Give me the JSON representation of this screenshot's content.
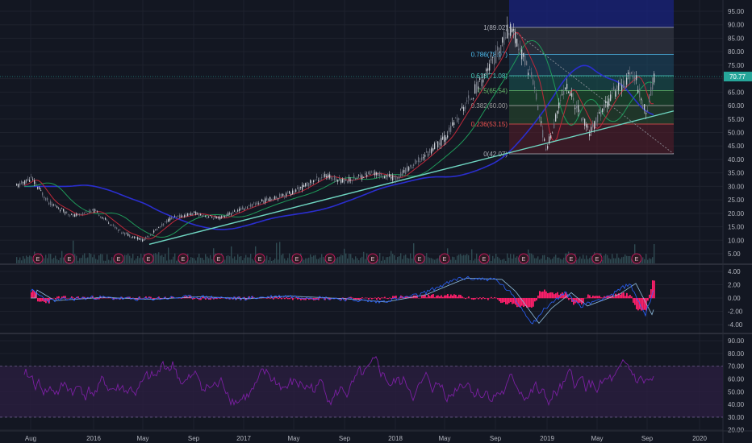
{
  "theme": {
    "background": "#131722",
    "grid": "#1e222d",
    "axis_text": "#b2b5be",
    "candle_up": "#c8ccd4",
    "candle_down": "#6e7380",
    "volume": "#2f4a52",
    "ma_green": "#1f9a5a",
    "ma_red": "#c0283a",
    "ma_blue": "#2a2ecf",
    "trendline": "#6fd6c2",
    "current_price_color": "#26a69a",
    "macd_hist": "#ff1f6b",
    "macd_line": "#2962ff",
    "signal_line": "#90bfe0",
    "rsi_line": "#7b1fa2",
    "rsi_band": "#2a1e40"
  },
  "price_axis": {
    "ticks": [
      "95.00",
      "90.00",
      "85.00",
      "80.00",
      "75.00",
      "70.00",
      "65.00",
      "60.00",
      "55.00",
      "50.00",
      "45.00",
      "40.00",
      "35.00",
      "30.00",
      "25.00",
      "20.00",
      "15.00",
      "10.00",
      "5.00"
    ],
    "current_price_label": "70.77"
  },
  "macd_axis": {
    "ticks": [
      "4.00",
      "2.00",
      "0.00",
      "-2.00",
      "-4.00"
    ]
  },
  "rsi_axis": {
    "ticks": [
      "90.00",
      "80.00",
      "70.00",
      "60.00",
      "50.00",
      "40.00",
      "30.00",
      "20.00"
    ]
  },
  "time_axis": {
    "labels": [
      "Aug",
      "2016",
      "May",
      "Sep",
      "2017",
      "May",
      "Sep",
      "2018",
      "May",
      "Sep",
      "2019",
      "May",
      "Sep",
      "2020"
    ]
  },
  "earnings_marker": "E",
  "fib_levels": [
    {
      "label": "1(89.02)",
      "color": "#b2b5be"
    },
    {
      "label": "0.786(78.97)",
      "color": "#4fc3f7"
    },
    {
      "label": "0.618(71.08)",
      "color": "#4dd0c0"
    },
    {
      "label": "0.5(65.54)",
      "color": "#66bb6a"
    },
    {
      "label": "0.382(60.00)",
      "color": "#9e9e9e"
    },
    {
      "label": "0.236(53.15)",
      "color": "#ef5350"
    },
    {
      "label": "0(42.07)",
      "color": "#b2b5be"
    }
  ],
  "chart_data": [
    {
      "type": "line",
      "title": "",
      "xlabel": "",
      "ylabel": "",
      "ylim": [
        0,
        97
      ],
      "x": [
        "Aug",
        "2016",
        "May",
        "Sep",
        "2017",
        "May",
        "Sep",
        "2018",
        "May",
        "Sep",
        "2019",
        "May",
        "Sep"
      ],
      "series": [
        {
          "values": [
            32,
            22,
            10,
            20,
            19,
            25,
            30,
            33,
            48,
            89,
            42,
            74,
            70.77
          ]
        }
      ],
      "fibonacci": {
        "high": 89.02,
        "low": 42.07,
        "levels": [
          1,
          0.786,
          0.618,
          0.5,
          0.382,
          0.236,
          0
        ]
      },
      "last_price": 70.77
    },
    {
      "type": "area",
      "title": "",
      "ylim": [
        -4.5,
        4.5
      ],
      "x": [
        "Aug",
        "2016",
        "May",
        "Sep",
        "2017",
        "May",
        "Sep",
        "2018",
        "May",
        "Sep",
        "2019",
        "May",
        "Sep"
      ],
      "series": [
        {
          "values": [
            0.5,
            -0.6,
            -0.2,
            0.3,
            -0.3,
            0.4,
            0.0,
            -0.6,
            1.2,
            4.0,
            -4.0,
            2.5,
            -2.0
          ]
        }
      ]
    },
    {
      "type": "line",
      "title": "",
      "ylim": [
        20,
        95
      ],
      "x": [
        "Aug",
        "2016",
        "May",
        "Sep",
        "2017",
        "May",
        "Sep",
        "2018",
        "May",
        "Sep",
        "2019",
        "May",
        "Sep"
      ],
      "series": [
        {
          "values": [
            60,
            35,
            50,
            75,
            45,
            70,
            40,
            65,
            80,
            45,
            30,
            72,
            68
          ]
        }
      ],
      "bands": [
        30,
        70
      ]
    }
  ]
}
